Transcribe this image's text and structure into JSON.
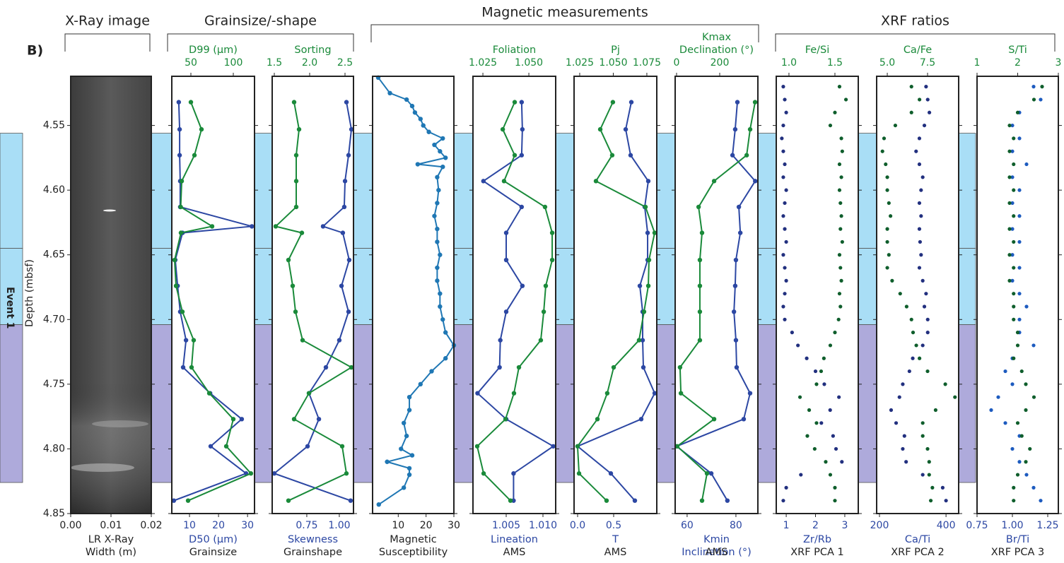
{
  "figure_label": "B)",
  "groups": [
    {
      "title": "X-Ray image"
    },
    {
      "title": "Grainsize/-shape"
    },
    {
      "title": "Magnetic measurements"
    },
    {
      "title": "XRF ratios"
    }
  ],
  "depth_axis": {
    "label": "Depth (mbsf)",
    "ylim": [
      4.512,
      4.85
    ],
    "yticks": [
      4.55,
      {
        "value": 4.6,
        "label": "4.60"
      },
      4.65,
      {
        "value": 4.7,
        "label": "4.70"
      },
      4.75,
      {
        "value": 4.8,
        "label": "4.80"
      },
      4.85
    ]
  },
  "events": {
    "label": "Event 1",
    "bands": [
      {
        "from": 4.556,
        "to": 4.645,
        "color": "#a9def6"
      },
      {
        "from": 4.645,
        "to": 4.704,
        "color": "#a9def6"
      },
      {
        "from": 4.704,
        "to": 4.826,
        "color": "#aeaadb"
      }
    ]
  },
  "chart_data": [
    {
      "type": "image",
      "xlim": [
        0,
        0.02
      ],
      "xticks": [
        {
          "value": 0,
          "label": "0.00"
        },
        0.01,
        0.02
      ],
      "xlabel": [
        "LR X-Ray",
        "Width (m)"
      ],
      "xlabel_color": "#222"
    },
    {
      "type": "line",
      "xlim": [
        3.9,
        32.4
      ],
      "xticks": [
        10,
        20,
        30
      ],
      "xlabel": [
        "D50 (μm)"
      ],
      "xlabel_color": "#2c47a3",
      "caption": "Grainsize",
      "x2lim": [
        27.5,
        125
      ],
      "x2ticks": [
        50,
        100
      ],
      "x2label": [
        "D99 (μm)"
      ],
      "x2label_color": "#1a8a3a",
      "depth": [
        4.532,
        4.553,
        4.573,
        4.593,
        4.613,
        4.628,
        4.633,
        4.654,
        4.674,
        4.694,
        4.716,
        4.737,
        4.757,
        4.777,
        4.798,
        4.819,
        4.84
      ],
      "series": [
        {
          "axis": "x",
          "color": "#2c47a3",
          "values": [
            6.3,
            6.6,
            6.6,
            6.8,
            6.8,
            31.5,
            7.6,
            5.1,
            5.9,
            6.8,
            8.8,
            7.8,
            17.1,
            28.0,
            17.3,
            29.5,
            4.6
          ]
        },
        {
          "axis": "x2",
          "color": "#1a8a3a",
          "values": [
            50,
            62.5,
            54.2,
            39.2,
            38,
            75,
            38.3,
            30.8,
            32.5,
            40,
            53.3,
            50.8,
            71.7,
            100,
            91.7,
            120.8,
            46.7
          ]
        }
      ]
    },
    {
      "type": "line",
      "xlim": [
        0.484,
        1.109
      ],
      "xticks": [
        0.75,
        {
          "value": 1,
          "label": "1.00"
        }
      ],
      "xlabel": [
        "Skewness"
      ],
      "xlabel_color": "#2c47a3",
      "caption": "Grainshape",
      "x2lim": [
        1.47,
        2.62
      ],
      "x2ticks": [
        1.5,
        {
          "value": 2,
          "label": "2.0"
        },
        2.5
      ],
      "x2label": [
        "Sorting"
      ],
      "x2label_color": "#1a8a3a",
      "depth": [
        4.532,
        4.553,
        4.573,
        4.593,
        4.613,
        4.628,
        4.633,
        4.654,
        4.674,
        4.694,
        4.716,
        4.737,
        4.757,
        4.777,
        4.798,
        4.819,
        4.84
      ],
      "series": [
        {
          "axis": "x",
          "color": "#2c47a3",
          "values": [
            1.055,
            1.093,
            1.071,
            1.044,
            1.038,
            0.875,
            1.027,
            1.076,
            1.017,
            1.071,
            1.0,
            0.897,
            0.767,
            0.843,
            0.756,
            0.5,
            1.087
          ]
        },
        {
          "axis": "x2",
          "color": "#1a8a3a",
          "values": [
            1.78,
            1.85,
            1.81,
            1.81,
            1.81,
            1.52,
            1.89,
            1.7,
            1.76,
            1.8,
            1.9,
            2.59,
            1.99,
            1.78,
            2.46,
            2.52,
            1.7
          ]
        }
      ]
    },
    {
      "type": "line",
      "xlim": [
        0.77,
        30
      ],
      "xticks": [
        10,
        20,
        30
      ],
      "xlabel": [
        "Magnetic",
        "Susceptibility"
      ],
      "xlabel_color": "#222",
      "depth": [
        4.513,
        4.525,
        4.53,
        4.535,
        4.54,
        4.545,
        4.55,
        4.555,
        4.56,
        4.565,
        4.57,
        4.575,
        4.58,
        4.582,
        4.59,
        4.6,
        4.61,
        4.62,
        4.63,
        4.64,
        4.65,
        4.66,
        4.67,
        4.68,
        4.69,
        4.7,
        4.71,
        4.72,
        4.73,
        4.74,
        4.75,
        4.76,
        4.77,
        4.78,
        4.79,
        4.8,
        4.805,
        4.81,
        4.815,
        4.82,
        4.83,
        4.843
      ],
      "series": [
        {
          "axis": "x",
          "color": "#1f77b4",
          "values": [
            2.8,
            7,
            13,
            15,
            16,
            18,
            19,
            21,
            26,
            23,
            25,
            27,
            17,
            26,
            24,
            24.5,
            24,
            23,
            24,
            24,
            25,
            24,
            24,
            25,
            25,
            26,
            27,
            30,
            27,
            22,
            18,
            14,
            14,
            12,
            13,
            11,
            15,
            6,
            14,
            14,
            12,
            3
          ]
        }
      ]
    },
    {
      "type": "line",
      "xlim": [
        1.00048,
        1.01173
      ],
      "xticks": [
        1.005,
        {
          "value": 1.01,
          "label": "1.010"
        }
      ],
      "xlabel": [
        "Lineation"
      ],
      "xlabel_color": "#2c47a3",
      "caption": "AMS",
      "x2lim": [
        1.0196,
        1.0646
      ],
      "x2ticks": [
        1.025,
        {
          "value": 1.05,
          "label": "1.050"
        }
      ],
      "x2label": [
        "Foliation"
      ],
      "x2label_color": "#1a8a3a",
      "depth": [
        4.532,
        4.553,
        4.573,
        4.593,
        4.613,
        4.633,
        4.654,
        4.674,
        4.694,
        4.716,
        4.737,
        4.757,
        4.777,
        4.798,
        4.819,
        4.84
      ],
      "series": [
        {
          "axis": "x",
          "color": "#2c47a3",
          "values": [
            1.0071,
            1.0072,
            1.0071,
            1.0019,
            1.0071,
            1.005,
            1.005,
            1.0072,
            1.005,
            1.0042,
            1.0041,
            1.0011,
            1.005,
            1.0114,
            1.006,
            1.006
          ]
        },
        {
          "axis": "x2",
          "color": "#1a8a3a",
          "values": [
            1.0423,
            1.0358,
            1.0423,
            1.0365,
            1.0588,
            1.0627,
            1.0627,
            1.0592,
            1.0581,
            1.0565,
            1.0446,
            1.0419,
            1.0373,
            1.0219,
            1.0254,
            1.04
          ]
        }
      ]
    },
    {
      "type": "line",
      "xlim": [
        -0.049,
        1.098
      ],
      "xticks": [
        {
          "value": 0,
          "label": "0.0"
        },
        0.5
      ],
      "xlabel": [
        "T"
      ],
      "xlabel_color": "#2c47a3",
      "caption": "AMS",
      "x2lim": [
        1.0208,
        1.0824
      ],
      "x2ticks": [
        1.025,
        {
          "value": 1.05,
          "label": "1.050"
        },
        1.075
      ],
      "x2label": [
        "Pj"
      ],
      "x2label_color": "#1a8a3a",
      "depth": [
        4.532,
        4.553,
        4.573,
        4.593,
        4.613,
        4.633,
        4.654,
        4.674,
        4.694,
        4.716,
        4.737,
        4.757,
        4.777,
        4.798,
        4.819,
        4.84
      ],
      "series": [
        {
          "axis": "x",
          "color": "#2c47a3",
          "values": [
            0.745,
            0.667,
            0.735,
            0.98,
            0.931,
            0.971,
            0.971,
            0.863,
            0.902,
            0.902,
            0.912,
            1.069,
            0.882,
            0,
            0.461,
            0.794
          ]
        },
        {
          "axis": "x2",
          "color": "#1a8a3a",
          "values": [
            1.0497,
            1.0403,
            1.0492,
            1.0371,
            1.074,
            1.0808,
            1.0766,
            1.0761,
            1.0729,
            1.0692,
            1.0503,
            1.0455,
            1.0382,
            1.0234,
            1.0245,
            1.045
          ]
        }
      ]
    },
    {
      "type": "line",
      "xlim": [
        55.1,
        89
      ],
      "xticks": [
        60,
        80
      ],
      "xlabel": [
        "Kmin",
        "Inclination (°)"
      ],
      "xlabel_color": "#2c47a3",
      "caption": "AMS",
      "x2lim": [
        -6.6,
        377
      ],
      "x2ticks": [
        0,
        200
      ],
      "x2label": [
        "Kmax",
        "Declination (°)"
      ],
      "x2label_color": "#1a8a3a",
      "depth": [
        4.532,
        4.553,
        4.573,
        4.593,
        4.613,
        4.633,
        4.654,
        4.674,
        4.694,
        4.716,
        4.737,
        4.757,
        4.777,
        4.798,
        4.819,
        4.84
      ],
      "series": [
        {
          "axis": "x",
          "color": "#2c47a3",
          "values": [
            80.6,
            79.7,
            78.6,
            87.9,
            81.2,
            81.8,
            80.0,
            79.7,
            79.2,
            80.0,
            80.3,
            85.8,
            83.2,
            55.7,
            69.9,
            76.5
          ]
        },
        {
          "axis": "x2",
          "color": "#1a8a3a",
          "values": [
            364,
            341,
            325,
            174,
            102,
            118,
            108,
            108,
            108,
            108,
            16,
            20,
            174,
            3,
            141,
            118
          ]
        }
      ]
    },
    {
      "type": "scatter",
      "xlim": [
        0.66,
        3.46
      ],
      "xticks": [
        1,
        2,
        3
      ],
      "xlabel": [
        "Zr/Rb"
      ],
      "xlabel_color": "#2c47a3",
      "caption": "XRF PCA 1",
      "x2lim": [
        0.862,
        1.754
      ],
      "x2ticks": [
        {
          "value": 1,
          "label": "1.0"
        },
        1.5
      ],
      "x2label": [
        "Fe/Si"
      ],
      "x2label_color": "#1a8a3a",
      "depth": [
        4.52,
        4.53,
        4.54,
        4.55,
        4.56,
        4.57,
        4.58,
        4.59,
        4.6,
        4.61,
        4.62,
        4.63,
        4.64,
        4.65,
        4.66,
        4.67,
        4.68,
        4.69,
        4.7,
        4.71,
        4.72,
        4.73,
        4.74,
        4.75,
        4.76,
        4.77,
        4.78,
        4.79,
        4.8,
        4.81,
        4.82,
        4.83,
        4.84
      ],
      "series": [
        {
          "axis": "x",
          "color": "#22307f",
          "values": [
            0.9,
            0.95,
            1.0,
            0.9,
            0.85,
            0.9,
            0.95,
            0.9,
            1.0,
            0.95,
            0.9,
            0.95,
            1.0,
            0.9,
            0.95,
            1.0,
            0.95,
            0.9,
            0.95,
            1.2,
            1.4,
            1.7,
            2.0,
            2.3,
            2.8,
            2.5,
            2.2,
            2.6,
            2.7,
            2.9,
            1.5,
            1.0,
            0.9
          ]
        },
        {
          "axis": "x2",
          "color": "#0f5e2c",
          "values": [
            1.55,
            1.62,
            1.5,
            1.45,
            1.57,
            1.58,
            1.55,
            1.57,
            1.55,
            1.56,
            1.57,
            1.56,
            1.58,
            1.55,
            1.56,
            1.57,
            1.55,
            1.56,
            1.54,
            1.5,
            1.45,
            1.38,
            1.35,
            1.3,
            1.12,
            1.22,
            1.3,
            1.2,
            1.28,
            1.4,
            1.45,
            1.5,
            1.5
          ]
        }
      ]
    },
    {
      "type": "scatter",
      "xlim": [
        191.5,
        438
      ],
      "xticks": [
        200,
        400
      ],
      "xlabel": [
        "Ca/Ti"
      ],
      "xlabel_color": "#2c47a3",
      "caption": "XRF PCA 2",
      "x2lim": [
        4.34,
        9.43
      ],
      "x2ticks": [
        {
          "value": 5,
          "label": "5.0"
        },
        7.5
      ],
      "x2label": [
        "Ca/Fe"
      ],
      "x2label_color": "#1a8a3a",
      "depth": [
        4.52,
        4.53,
        4.54,
        4.55,
        4.56,
        4.57,
        4.58,
        4.59,
        4.6,
        4.61,
        4.62,
        4.63,
        4.64,
        4.65,
        4.66,
        4.67,
        4.68,
        4.69,
        4.7,
        4.71,
        4.72,
        4.73,
        4.74,
        4.75,
        4.76,
        4.77,
        4.78,
        4.79,
        4.8,
        4.81,
        4.82,
        4.83,
        4.84
      ],
      "series": [
        {
          "axis": "x",
          "color": "#22307f",
          "values": [
            340,
            345,
            350,
            335,
            320,
            310,
            320,
            330,
            325,
            320,
            325,
            320,
            322,
            325,
            320,
            330,
            340,
            335,
            345,
            345,
            330,
            300,
            290,
            270,
            260,
            235,
            250,
            275,
            270,
            280,
            330,
            390,
            400
          ]
        },
        {
          "axis": "x2",
          "color": "#0f5e2c",
          "values": [
            6.5,
            7.0,
            6.5,
            5.5,
            4.8,
            4.7,
            4.9,
            5.0,
            5.0,
            5.1,
            5.2,
            5.0,
            5.0,
            5.1,
            5.0,
            5.3,
            5.8,
            6.2,
            6.5,
            6.6,
            6.8,
            7.0,
            7.5,
            8.6,
            9.2,
            8.0,
            7.2,
            7.2,
            7.5,
            7.6,
            7.6,
            7.8,
            7.7
          ]
        }
      ]
    },
    {
      "type": "scatter",
      "xlim": [
        0.75,
        1.325
      ],
      "xticks": [
        0.75,
        {
          "value": 1,
          "label": "1.00"
        },
        1.25
      ],
      "xlabel": [
        "Br/Ti"
      ],
      "xlabel_color": "#2c47a3",
      "caption": "XRF PCA 3",
      "x2lim": [
        1,
        3
      ],
      "x2ticks": [
        1,
        2,
        3
      ],
      "x2label": [
        "S/Ti"
      ],
      "x2label_color": "#1a8a3a",
      "depth": [
        4.52,
        4.53,
        4.54,
        4.55,
        4.56,
        4.57,
        4.58,
        4.59,
        4.6,
        4.61,
        4.62,
        4.63,
        4.64,
        4.65,
        4.66,
        4.67,
        4.68,
        4.69,
        4.7,
        4.71,
        4.72,
        4.73,
        4.74,
        4.75,
        4.76,
        4.77,
        4.78,
        4.79,
        4.8,
        4.81,
        4.82,
        4.83,
        4.84
      ],
      "series": [
        {
          "axis": "x",
          "color": "#1d5bbf",
          "values": [
            1.15,
            1.2,
            1.05,
            1.0,
            1.05,
            1.0,
            1.1,
            1.0,
            1.05,
            1.0,
            1.05,
            1.0,
            1.05,
            1.0,
            1.05,
            1.0,
            1.05,
            1.1,
            1.05,
            1.05,
            1.15,
            1.0,
            0.95,
            1.0,
            0.9,
            0.85,
            0.95,
            1.05,
            1.0,
            1.05,
            1.1,
            1.15,
            1.2
          ]
        },
        {
          "axis": "x2",
          "color": "#0f5e2c",
          "values": [
            2.6,
            2.4,
            2.0,
            1.8,
            1.9,
            1.8,
            1.9,
            1.8,
            1.9,
            1.8,
            1.9,
            1.8,
            1.9,
            1.8,
            1.9,
            1.8,
            1.9,
            1.9,
            1.9,
            2.0,
            2.0,
            1.9,
            2.1,
            2.2,
            2.4,
            2.2,
            2.0,
            2.1,
            2.3,
            2.2,
            2.0,
            1.9,
            1.9
          ]
        }
      ]
    }
  ]
}
